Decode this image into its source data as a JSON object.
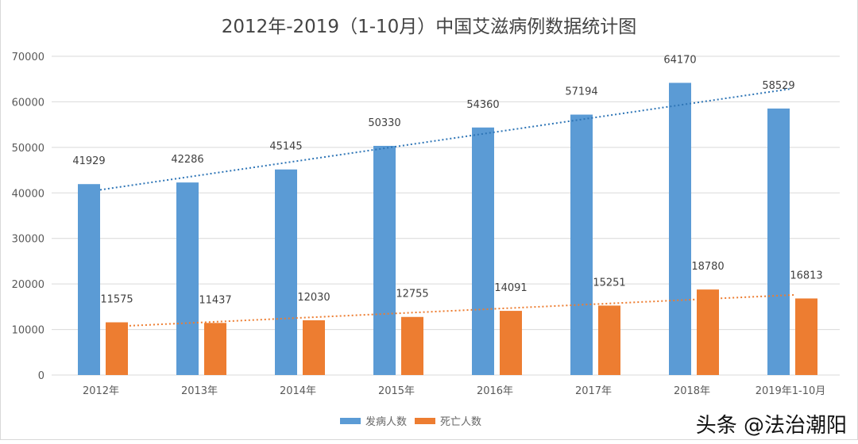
{
  "chart_data": {
    "type": "bar",
    "title": "2012年-2019（1-10月）中国艾滋病例数据统计图",
    "categories": [
      "2012年",
      "2013年",
      "2014年",
      "2015年",
      "2016年",
      "2017年",
      "2018年",
      "2019年1-10月"
    ],
    "series": [
      {
        "name": "发病人数",
        "color": "#5b9bd5",
        "values": [
          41929,
          42286,
          45145,
          50330,
          54360,
          57194,
          64170,
          58529
        ],
        "trendline": "linear-dotted"
      },
      {
        "name": "死亡人数",
        "color": "#ed7d31",
        "values": [
          11575,
          11437,
          12030,
          12755,
          14091,
          15251,
          18780,
          16813
        ],
        "trendline": "linear-dotted"
      }
    ],
    "yticks": [
      0,
      10000,
      20000,
      30000,
      40000,
      50000,
      60000,
      70000
    ],
    "ylim": [
      0,
      70000
    ],
    "grid": true,
    "legend": "bottom",
    "data_labels": true
  },
  "watermark": "头条 @法治潮阳"
}
